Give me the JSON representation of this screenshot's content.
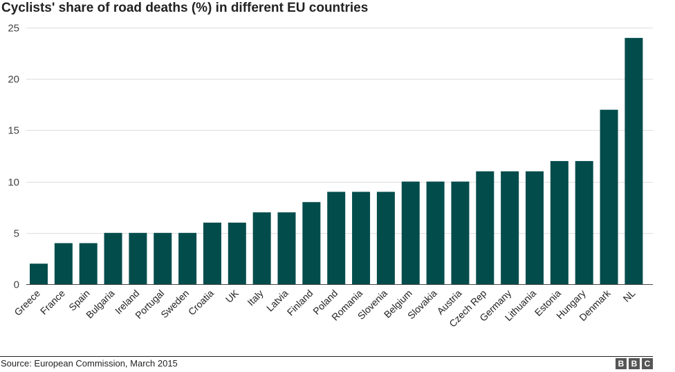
{
  "chart_data": {
    "type": "bar",
    "title": "Cyclists' share of road deaths (%) in different EU countries",
    "xlabel": "",
    "ylabel": "",
    "ylim": [
      0,
      25
    ],
    "yticks": [
      0,
      5,
      10,
      15,
      20,
      25
    ],
    "grid": true,
    "bar_color": "#034c4c",
    "categories": [
      "Greece",
      "France",
      "Spain",
      "Bulgaria",
      "Ireland",
      "Portugal",
      "Sweden",
      "Croatia",
      "UK",
      "Italy",
      "Latvia",
      "Finland",
      "Poland",
      "Romania",
      "Slovenia",
      "Belgium",
      "Slovakia",
      "Austria",
      "Czech Rep",
      "Germany",
      "Lithuania",
      "Estonia",
      "Hungary",
      "Denmark",
      "NL"
    ],
    "values": [
      2,
      4,
      4,
      5,
      5,
      5,
      5,
      6,
      6,
      7,
      7,
      8,
      9,
      9,
      9,
      10,
      10,
      10,
      11,
      11,
      11,
      12,
      12,
      17,
      24
    ]
  },
  "footer": {
    "source": "Source: European Commission, March 2015",
    "logo_letters": [
      "B",
      "B",
      "C"
    ]
  }
}
